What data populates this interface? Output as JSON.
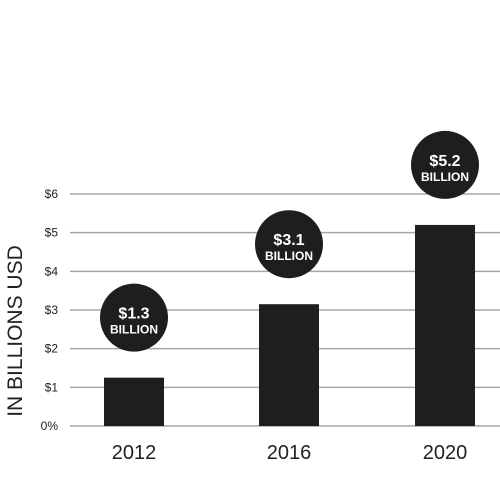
{
  "chart_data": {
    "type": "bar",
    "categories": [
      "2012",
      "2016",
      "2020"
    ],
    "values": [
      1.25,
      3.15,
      5.2
    ],
    "ylabel": "IN BILLIONS USD",
    "xlabel": "",
    "title": "",
    "ylim": [
      0,
      6
    ],
    "y_ticks": [
      0,
      1,
      2,
      3,
      4,
      5,
      6
    ],
    "y_tick_labels": [
      "0%",
      "$1",
      "$2",
      "$3",
      "$4",
      "$5",
      "$6"
    ],
    "grid": "horizontal",
    "annotations": [
      {
        "category": "2012",
        "value_text": "$1.3",
        "unit_text": "BILLION"
      },
      {
        "category": "2016",
        "value_text": "$3.1",
        "unit_text": "BILLION"
      },
      {
        "category": "2020",
        "value_text": "$5.2",
        "unit_text": "BILLION"
      }
    ],
    "colors": {
      "bar": "#1e1e1e",
      "callout": "#1e1e1e",
      "grid": "#a6a6a6",
      "text": "#222222"
    }
  }
}
